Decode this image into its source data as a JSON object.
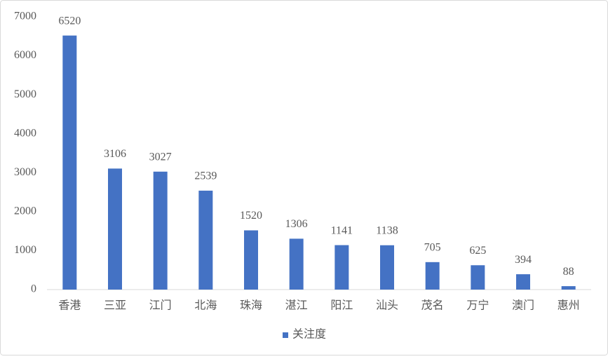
{
  "chart_data": {
    "type": "bar",
    "categories": [
      "香港",
      "三亚",
      "江门",
      "北海",
      "珠海",
      "湛江",
      "阳江",
      "汕头",
      "茂名",
      "万宁",
      "澳门",
      "惠州"
    ],
    "series": [
      {
        "name": "关注度",
        "color": "#4472c4",
        "values": [
          6520,
          3106,
          3027,
          2539,
          1520,
          1306,
          1141,
          1138,
          705,
          625,
          394,
          88
        ]
      }
    ],
    "ylim": [
      0,
      7000
    ],
    "yticks": [
      0,
      1000,
      2000,
      3000,
      4000,
      5000,
      6000,
      7000
    ],
    "grid": false,
    "data_labels": true,
    "legend": "bottom"
  }
}
